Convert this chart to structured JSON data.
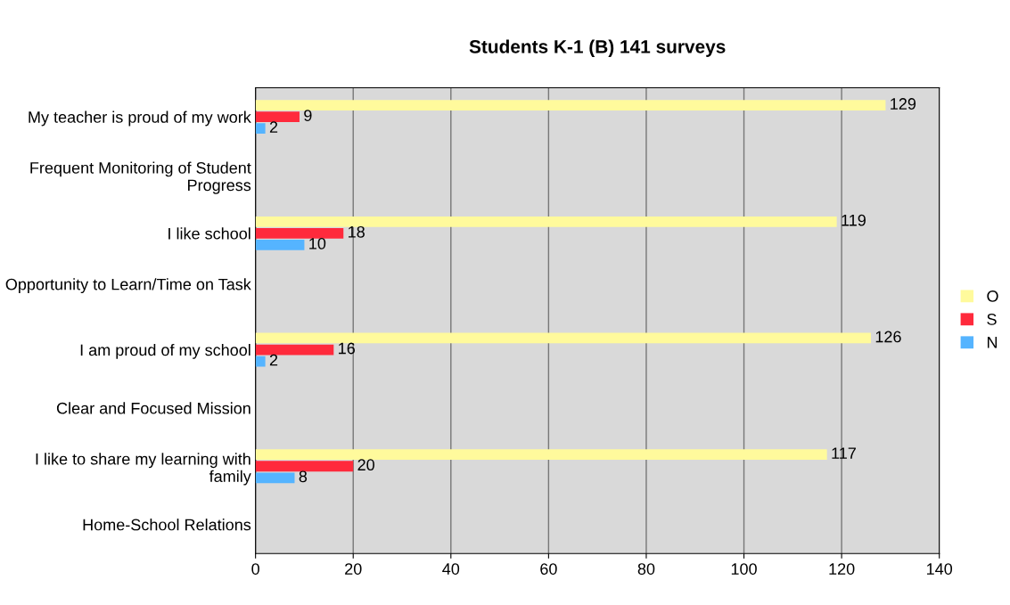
{
  "chart_data": {
    "type": "bar",
    "orientation": "horizontal",
    "title": "Students K-1 (B) 141 surveys",
    "categories": [
      "My teacher is proud of my work",
      "Frequent Monitoring of Student Progress",
      "I like school",
      "Opportunity to Learn/Time on Task ",
      "I am proud of my school",
      "Clear and Focused Mission",
      "I like to share my learning with family",
      "Home-School Relations"
    ],
    "series": [
      {
        "name": "O",
        "color": "#fffa9c",
        "values": [
          129,
          null,
          119,
          null,
          126,
          null,
          117,
          null
        ]
      },
      {
        "name": "S",
        "color": "#ff2a3c",
        "values": [
          9,
          null,
          18,
          null,
          16,
          null,
          20,
          null
        ]
      },
      {
        "name": "N",
        "color": "#55b4ff",
        "values": [
          2,
          null,
          10,
          null,
          2,
          null,
          8,
          null
        ]
      }
    ],
    "xlim": [
      0,
      140
    ],
    "xticks": [
      0,
      20,
      40,
      60,
      80,
      100,
      120,
      140
    ],
    "grid": "x",
    "legend": "right",
    "data_labels": true
  }
}
